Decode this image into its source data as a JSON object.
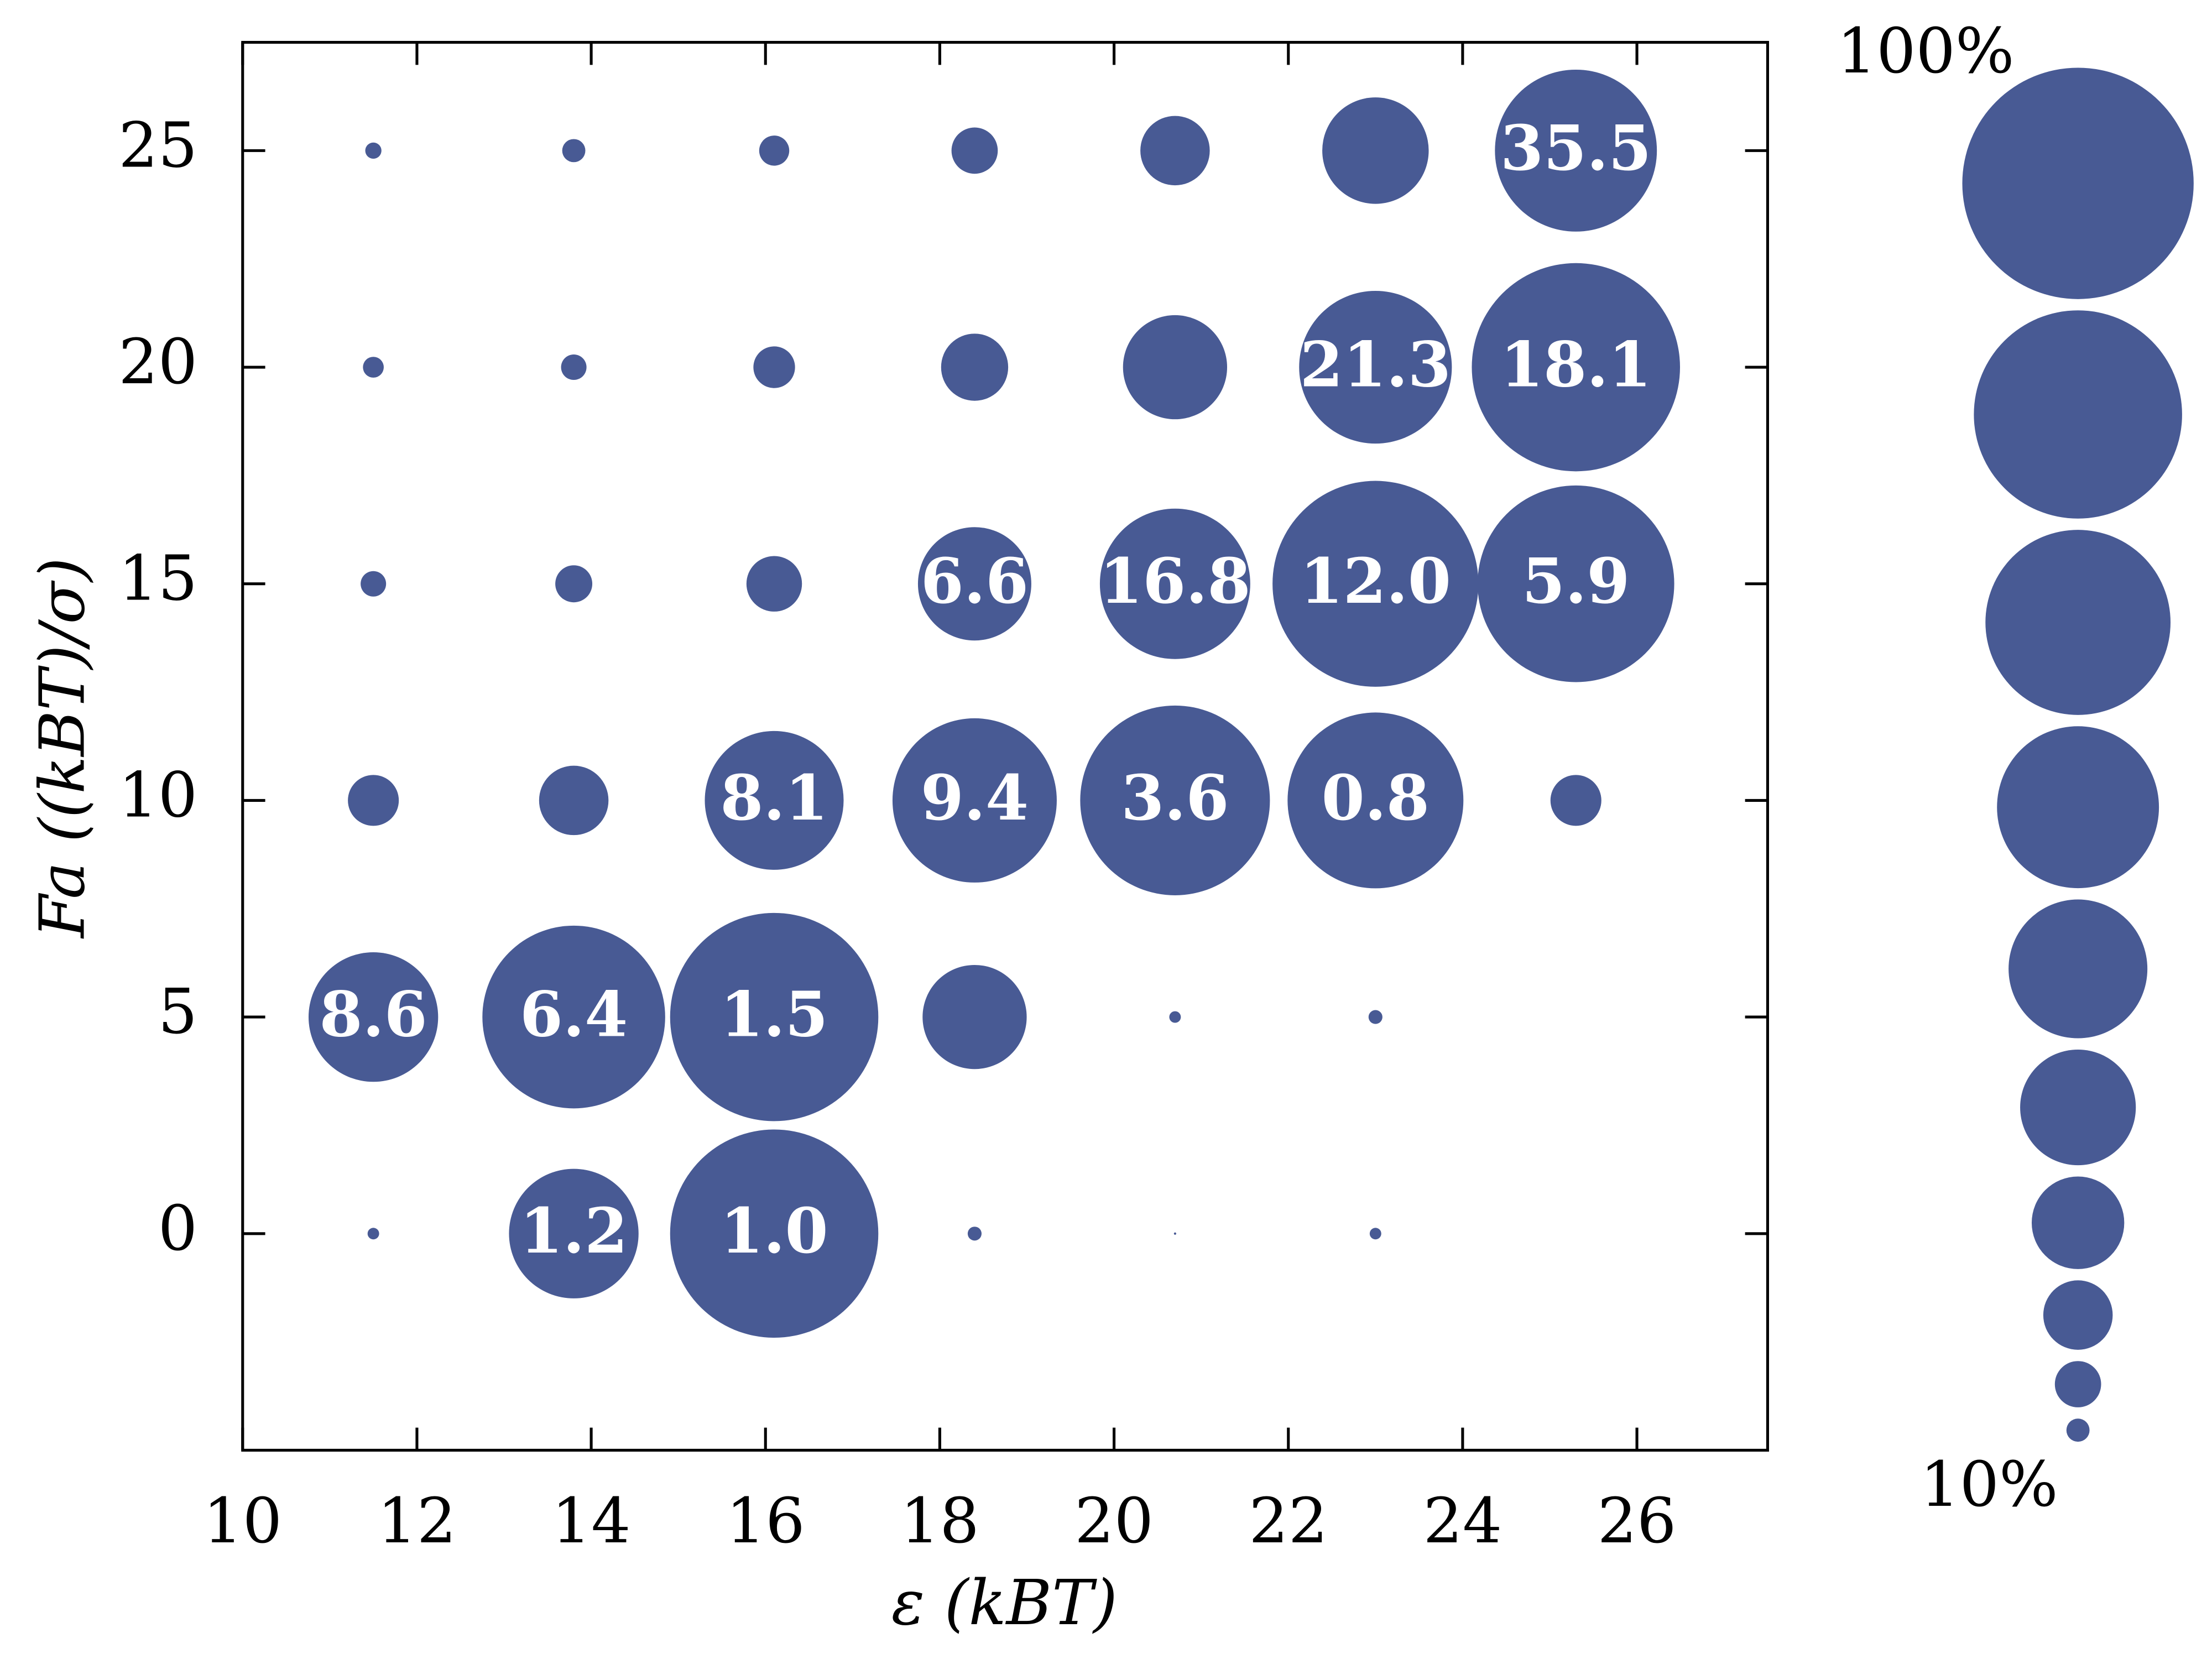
{
  "chart_data": {
    "type": "scatter",
    "x_label": "ε (kBT)",
    "y_label": "Fa ((kBT)/σ)",
    "xlim": [
      10,
      27.5
    ],
    "xticks": [
      10,
      12,
      14,
      16,
      18,
      20,
      22,
      24,
      26
    ],
    "ylim": [
      -5,
      27.5
    ],
    "yticks": [
      0,
      5,
      10,
      15,
      20,
      25
    ],
    "color": "#485a94",
    "series": [
      {
        "x": [
          11.5,
          13.8,
          16.1,
          18.4,
          20.7,
          23.0,
          25.3,
          11.5,
          13.8,
          16.1,
          18.4,
          20.7,
          23.0,
          25.3,
          11.5,
          13.8,
          16.1,
          18.4,
          20.7,
          23.0,
          25.3,
          11.5,
          13.8,
          16.1,
          18.4,
          20.7,
          23.0,
          25.3,
          11.5,
          13.8,
          16.1,
          18.4,
          20.7,
          23.0,
          11.5,
          13.8,
          16.1,
          18.4,
          20.7,
          23.0
        ],
        "y": [
          25,
          25,
          25,
          25,
          25,
          25,
          25,
          20,
          20,
          20,
          20,
          20,
          20,
          20,
          15,
          15,
          15,
          15,
          15,
          15,
          15,
          10,
          10,
          10,
          10,
          10,
          10,
          10,
          5,
          5,
          5,
          5,
          5,
          5,
          0,
          0,
          0,
          0,
          0,
          0
        ],
        "sizes": [
          7,
          10,
          13,
          20,
          30,
          46,
          70,
          9,
          11,
          18,
          29,
          45,
          66,
          90,
          11,
          16,
          24,
          49,
          65,
          89,
          85,
          22,
          30,
          60,
          71,
          82,
          76,
          22,
          56,
          79,
          90,
          45,
          5,
          6,
          5,
          56,
          90,
          6,
          1,
          5
        ],
        "labels": [
          null,
          null,
          null,
          null,
          null,
          null,
          "35.5",
          null,
          null,
          null,
          null,
          null,
          "21.3",
          "18.1",
          null,
          null,
          null,
          "6.6",
          "16.8",
          "12.0",
          "5.9",
          null,
          null,
          "8.1",
          "9.4",
          "3.6",
          "0.8",
          null,
          "8.6",
          "6.4",
          "1.5",
          null,
          null,
          null,
          null,
          "1.2",
          "1.0",
          null,
          null,
          null
        ]
      }
    ],
    "size_legend": {
      "values": [
        100,
        90,
        80,
        70,
        60,
        50,
        40,
        30,
        20,
        10
      ],
      "top_label": "100%",
      "bottom_label": "10%"
    }
  }
}
